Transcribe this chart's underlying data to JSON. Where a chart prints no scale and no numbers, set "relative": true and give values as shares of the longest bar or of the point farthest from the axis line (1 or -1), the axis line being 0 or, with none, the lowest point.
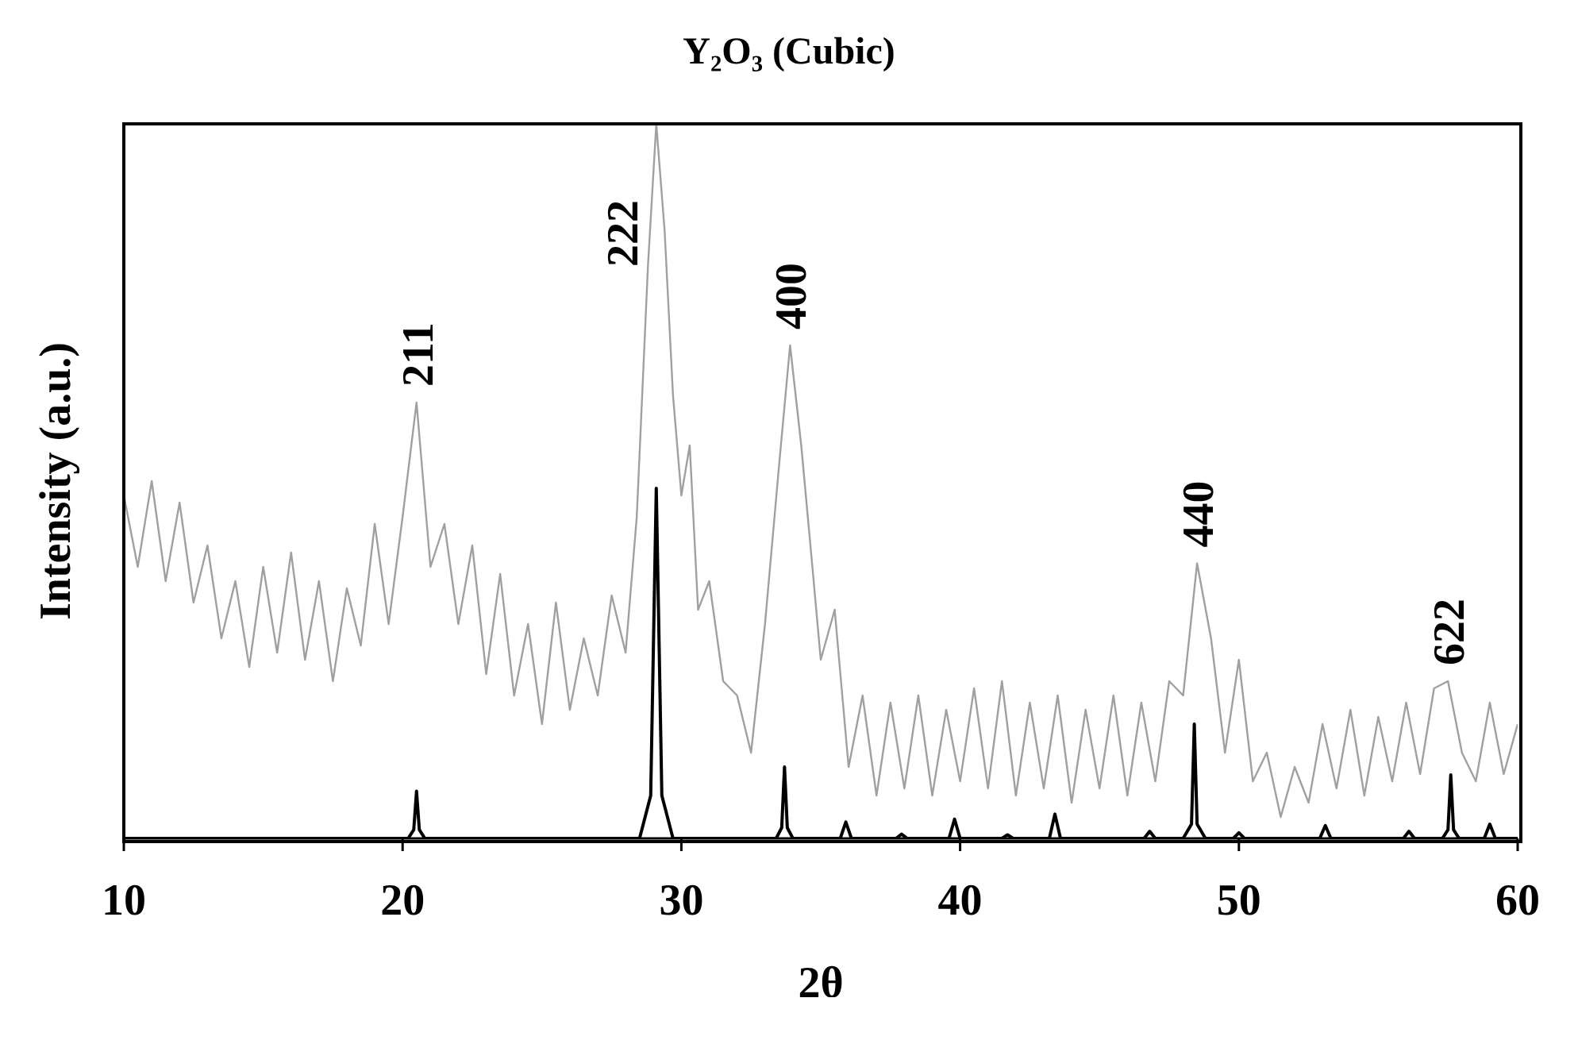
{
  "chart_data": {
    "type": "line",
    "title": "Y₂O₃ (Cubic)",
    "xlabel": "2θ",
    "ylabel": "Intensity (a.u.)",
    "relative": true,
    "xlim": [
      10,
      60
    ],
    "xticks": [
      10,
      20,
      30,
      40,
      50,
      60
    ],
    "tick_labels": "x",
    "marker": "none",
    "line_style": "solid",
    "series": [
      {
        "color": "#a0a0a0",
        "x": [
          10,
          10.5,
          11,
          11.5,
          12,
          12.5,
          13,
          13.5,
          14,
          14.5,
          15,
          15.5,
          16,
          16.5,
          17,
          17.5,
          18,
          18.5,
          19,
          19.5,
          20,
          20.5,
          21,
          21.5,
          22,
          22.5,
          23,
          23.5,
          24,
          24.5,
          25,
          25.5,
          26,
          26.5,
          27,
          27.5,
          28,
          28.4,
          28.8,
          29.1,
          29.4,
          29.7,
          30,
          30.3,
          30.6,
          31,
          31.5,
          32,
          32.5,
          33,
          33.5,
          33.9,
          34.3,
          34.7,
          35,
          35.5,
          36,
          36.5,
          37,
          37.5,
          38,
          38.5,
          39,
          39.5,
          40,
          40.5,
          41,
          41.5,
          42,
          42.5,
          43,
          43.5,
          44,
          44.5,
          45,
          45.5,
          46,
          46.5,
          47,
          47.5,
          48,
          48.5,
          49,
          49.5,
          50,
          50.5,
          51,
          51.5,
          52,
          52.5,
          53,
          53.5,
          54,
          54.5,
          55,
          55.5,
          56,
          56.5,
          57,
          57.5,
          58,
          58.5,
          59,
          59.5,
          60
        ],
        "values": [
          0.48,
          0.38,
          0.5,
          0.36,
          0.47,
          0.33,
          0.41,
          0.28,
          0.36,
          0.24,
          0.38,
          0.26,
          0.4,
          0.25,
          0.36,
          0.22,
          0.35,
          0.27,
          0.44,
          0.3,
          0.45,
          0.61,
          0.38,
          0.44,
          0.3,
          0.41,
          0.23,
          0.37,
          0.2,
          0.3,
          0.16,
          0.33,
          0.18,
          0.28,
          0.2,
          0.34,
          0.26,
          0.45,
          0.8,
          1.0,
          0.85,
          0.62,
          0.48,
          0.55,
          0.32,
          0.36,
          0.22,
          0.2,
          0.12,
          0.3,
          0.52,
          0.69,
          0.55,
          0.38,
          0.25,
          0.32,
          0.1,
          0.2,
          0.06,
          0.19,
          0.07,
          0.2,
          0.06,
          0.18,
          0.08,
          0.21,
          0.07,
          0.22,
          0.06,
          0.19,
          0.07,
          0.2,
          0.05,
          0.18,
          0.07,
          0.2,
          0.06,
          0.19,
          0.08,
          0.22,
          0.2,
          0.385,
          0.28,
          0.12,
          0.25,
          0.08,
          0.12,
          0.03,
          0.1,
          0.05,
          0.16,
          0.07,
          0.18,
          0.06,
          0.17,
          0.08,
          0.19,
          0.09,
          0.21,
          0.22,
          0.12,
          0.08,
          0.19,
          0.09,
          0.16
        ]
      },
      {
        "color": "#000000",
        "x": [
          10,
          20.2,
          20.4,
          20.5,
          20.6,
          20.8,
          28.5,
          28.9,
          29.1,
          29.3,
          29.7,
          33.4,
          33.6,
          33.7,
          33.8,
          34.0,
          35.7,
          35.9,
          36.1,
          37.7,
          37.9,
          38.1,
          39.6,
          39.8,
          40.0,
          41.5,
          41.7,
          41.9,
          43.2,
          43.4,
          43.6,
          46.6,
          46.8,
          47.0,
          48.0,
          48.3,
          48.4,
          48.5,
          48.8,
          49.8,
          50.0,
          50.2,
          52.9,
          53.1,
          53.3,
          55.9,
          56.1,
          56.3,
          57.3,
          57.5,
          57.6,
          57.7,
          57.9,
          58.8,
          59.0,
          59.2,
          60
        ],
        "values": [
          0,
          0,
          0.012,
          0.066,
          0.012,
          0,
          0,
          0.06,
          0.49,
          0.06,
          0,
          0,
          0.015,
          0.1,
          0.015,
          0,
          0,
          0.023,
          0,
          0,
          0.006,
          0,
          0,
          0.027,
          0,
          0,
          0.005,
          0,
          0,
          0.034,
          0,
          0,
          0.01,
          0,
          0,
          0.02,
          0.16,
          0.02,
          0,
          0,
          0.008,
          0,
          0,
          0.018,
          0,
          0,
          0.01,
          0,
          0,
          0.012,
          0.089,
          0.012,
          0,
          0,
          0.02,
          0,
          0
        ]
      }
    ],
    "annotations": [
      {
        "text": "211",
        "x": 20.5,
        "y": 0.61
      },
      {
        "text": "222",
        "x": 29.1,
        "y": 1.0
      },
      {
        "text": "400",
        "x": 33.9,
        "y": 0.69
      },
      {
        "text": "440",
        "x": 48.5,
        "y": 0.385
      },
      {
        "text": "622",
        "x": 57.5,
        "y": 0.22
      }
    ]
  }
}
